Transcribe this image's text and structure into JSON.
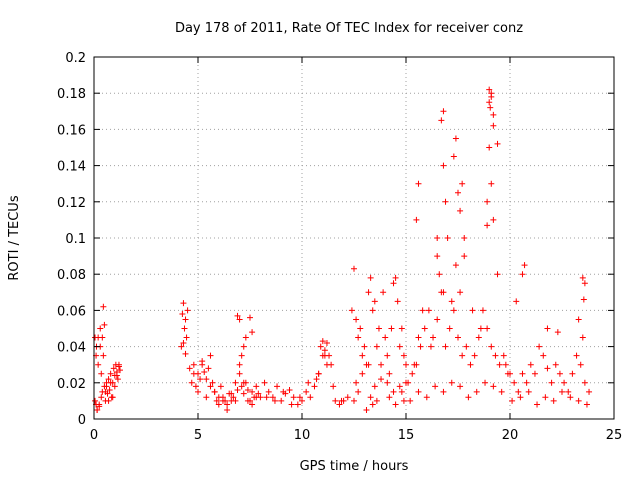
{
  "chart_data": {
    "type": "scatter",
    "title": "Day 178 of 2011, Rate Of TEC Index for receiver conz",
    "xlabel": "GPS time / hours",
    "ylabel": "ROTI / TECUs",
    "xlim": [
      0,
      25
    ],
    "ylim": [
      0,
      0.2
    ],
    "xticks": [
      0,
      5,
      10,
      15,
      20,
      25
    ],
    "yticks": [
      0,
      0.02,
      0.04,
      0.06,
      0.08,
      0.1,
      0.12,
      0.14,
      0.16,
      0.18,
      0.2
    ],
    "xtick_labels": [
      "0",
      "5",
      "10",
      "15",
      "20",
      "25"
    ],
    "ytick_labels": [
      "0",
      "0.02",
      "0.04",
      "0.06",
      "0.08",
      "0.1",
      "0.12",
      "0.14",
      "0.16",
      "0.18",
      "0.2"
    ],
    "grid": true,
    "marker": "plus",
    "color": "#ff0000",
    "series": [
      {
        "x": [
          0.05,
          0.1,
          0.12,
          0.15,
          0.2,
          0.25,
          0.3,
          0.35,
          0.4,
          0.45,
          0.5,
          0.55,
          0.6,
          0.65,
          0.7,
          0.75,
          0.8,
          0.85,
          0.9,
          0.95,
          1.0,
          1.05,
          1.1,
          1.15,
          1.2,
          1.25,
          0.1,
          0.2,
          0.3,
          0.4,
          0.5,
          0.55,
          0.6,
          0.7,
          0.8,
          0.9,
          1.0,
          1.1,
          1.2,
          0.15,
          0.35,
          0.45,
          0.05,
          0.25,
          4.2,
          4.25,
          4.3,
          4.35,
          4.4,
          4.45,
          4.5,
          4.3,
          4.4,
          4.6,
          4.7,
          4.8,
          4.9,
          5.0,
          5.1,
          5.2,
          5.3,
          5.4,
          5.5,
          5.6,
          5.7,
          5.8,
          5.9,
          6.0,
          6.1,
          6.2,
          6.3,
          6.4,
          6.5,
          6.6,
          6.7,
          6.8,
          6.9,
          7.0,
          7.1,
          7.2,
          7.3,
          7.4,
          7.5,
          7.6,
          7.7,
          7.8,
          7.9,
          8.0,
          4.8,
          5.0,
          5.2,
          5.4,
          5.6,
          5.8,
          6.0,
          6.2,
          6.4,
          6.6,
          6.8,
          7.0,
          7.2,
          7.4,
          7.6,
          7.8,
          6.9,
          7.0,
          7.2,
          7.5,
          7.3,
          7.6,
          7.1,
          8.2,
          8.4,
          8.6,
          8.8,
          9.0,
          9.2,
          9.4,
          9.6,
          9.8,
          10.0,
          10.2,
          10.4,
          10.6,
          10.8,
          11.0,
          11.2,
          11.4,
          11.6,
          11.8,
          12.0,
          12.2,
          8.3,
          8.7,
          9.1,
          9.5,
          9.9,
          10.3,
          10.7,
          11.1,
          11.5,
          11.9,
          10.9,
          11.0,
          11.1,
          11.2,
          10.8,
          11.3,
          12.4,
          12.5,
          12.6,
          12.7,
          12.8,
          12.9,
          13.0,
          13.1,
          13.2,
          13.3,
          13.4,
          13.5,
          13.6,
          13.7,
          13.8,
          13.9,
          14.0,
          14.1,
          14.2,
          14.3,
          14.4,
          14.5,
          14.6,
          14.7,
          14.8,
          14.9,
          15.0,
          12.6,
          12.9,
          13.2,
          13.5,
          13.8,
          14.1,
          14.4,
          14.7,
          15.0,
          12.5,
          12.7,
          13.3,
          13.4,
          13.6,
          14.2,
          14.8,
          14.9,
          14.5,
          13.1,
          15.1,
          15.3,
          15.5,
          15.7,
          15.9,
          16.1,
          16.3,
          16.5,
          16.7,
          16.9,
          17.1,
          17.3,
          17.5,
          17.7,
          17.9,
          18.1,
          18.3,
          18.5,
          18.7,
          18.9,
          19.1,
          19.3,
          19.5,
          19.7,
          19.9,
          15.2,
          15.6,
          16.0,
          16.4,
          16.8,
          17.2,
          17.6,
          18.0,
          18.4,
          18.8,
          19.2,
          19.6,
          15.4,
          15.6,
          15.8,
          16.2,
          16.6,
          16.8,
          17.0,
          17.2,
          17.4,
          17.6,
          17.8,
          18.2,
          18.6,
          15.5,
          15.6,
          16.5,
          16.8,
          16.9,
          17.4,
          17.5,
          17.7,
          17.8,
          18.9,
          19.0,
          19.1,
          19.2,
          19.4,
          16.5,
          16.7,
          16.8,
          17.3,
          17.6,
          19.0,
          19.1,
          19.4,
          19.2,
          18.9,
          19.0,
          19.1,
          19.05,
          19.2,
          19.8,
          20.0,
          20.2,
          20.4,
          20.6,
          20.8,
          21.0,
          21.2,
          21.4,
          21.6,
          21.8,
          22.0,
          22.2,
          22.4,
          22.6,
          22.8,
          23.0,
          23.2,
          23.4,
          23.6,
          23.8,
          20.1,
          20.5,
          20.9,
          21.3,
          21.7,
          22.1,
          22.5,
          22.9,
          23.3,
          23.7,
          20.3,
          20.6,
          20.7,
          21.8,
          22.3,
          23.3,
          23.5,
          23.5,
          23.6,
          23.55
        ],
        "y": [
          0.01,
          0.035,
          0.04,
          0.005,
          0.045,
          0.008,
          0.05,
          0.012,
          0.015,
          0.062,
          0.018,
          0.01,
          0.02,
          0.014,
          0.022,
          0.016,
          0.025,
          0.012,
          0.02,
          0.028,
          0.024,
          0.03,
          0.026,
          0.022,
          0.029,
          0.027,
          0.008,
          0.03,
          0.04,
          0.045,
          0.052,
          0.015,
          0.018,
          0.01,
          0.02,
          0.012,
          0.018,
          0.024,
          0.03,
          0.005,
          0.025,
          0.035,
          0.045,
          0.007,
          0.04,
          0.058,
          0.064,
          0.05,
          0.055,
          0.045,
          0.06,
          0.042,
          0.036,
          0.028,
          0.02,
          0.025,
          0.018,
          0.015,
          0.022,
          0.03,
          0.026,
          0.012,
          0.028,
          0.035,
          0.02,
          0.015,
          0.01,
          0.008,
          0.018,
          0.012,
          0.01,
          0.005,
          0.014,
          0.01,
          0.012,
          0.02,
          0.016,
          0.025,
          0.018,
          0.014,
          0.02,
          0.016,
          0.01,
          0.008,
          0.012,
          0.018,
          0.014,
          0.012,
          0.03,
          0.025,
          0.032,
          0.022,
          0.018,
          0.015,
          0.012,
          0.01,
          0.008,
          0.014,
          0.01,
          0.03,
          0.02,
          0.01,
          0.015,
          0.012,
          0.057,
          0.055,
          0.04,
          0.056,
          0.045,
          0.048,
          0.035,
          0.02,
          0.015,
          0.012,
          0.018,
          0.01,
          0.014,
          0.016,
          0.012,
          0.008,
          0.01,
          0.015,
          0.012,
          0.018,
          0.025,
          0.035,
          0.042,
          0.03,
          0.01,
          0.008,
          0.01,
          0.012,
          0.012,
          0.01,
          0.015,
          0.008,
          0.012,
          0.02,
          0.022,
          0.035,
          0.018,
          0.01,
          0.04,
          0.043,
          0.038,
          0.03,
          0.025,
          0.035,
          0.06,
          0.083,
          0.055,
          0.045,
          0.05,
          0.035,
          0.04,
          0.03,
          0.07,
          0.078,
          0.06,
          0.065,
          0.04,
          0.05,
          0.03,
          0.07,
          0.045,
          0.035,
          0.025,
          0.05,
          0.075,
          0.078,
          0.065,
          0.04,
          0.05,
          0.035,
          0.03,
          0.02,
          0.025,
          0.03,
          0.018,
          0.022,
          0.02,
          0.015,
          0.018,
          0.02,
          0.01,
          0.015,
          0.012,
          0.008,
          0.01,
          0.012,
          0.015,
          0.01,
          0.008,
          0.005,
          0.02,
          0.025,
          0.03,
          0.04,
          0.05,
          0.06,
          0.045,
          0.055,
          0.07,
          0.04,
          0.05,
          0.06,
          0.045,
          0.035,
          0.04,
          0.03,
          0.035,
          0.045,
          0.06,
          0.05,
          0.04,
          0.035,
          0.03,
          0.035,
          0.025,
          0.01,
          0.015,
          0.012,
          0.018,
          0.015,
          0.02,
          0.018,
          0.012,
          0.015,
          0.02,
          0.018,
          0.015,
          0.03,
          0.045,
          0.06,
          0.04,
          0.08,
          0.07,
          0.1,
          0.065,
          0.085,
          0.07,
          0.09,
          0.06,
          0.05,
          0.11,
          0.13,
          0.09,
          0.14,
          0.12,
          0.155,
          0.125,
          0.13,
          0.1,
          0.12,
          0.15,
          0.13,
          0.11,
          0.08,
          0.1,
          0.165,
          0.17,
          0.145,
          0.115,
          0.175,
          0.18,
          0.152,
          0.162,
          0.107,
          0.182,
          0.178,
          0.172,
          0.168,
          0.03,
          0.025,
          0.02,
          0.015,
          0.025,
          0.02,
          0.03,
          0.025,
          0.04,
          0.035,
          0.028,
          0.02,
          0.03,
          0.025,
          0.02,
          0.015,
          0.025,
          0.035,
          0.03,
          0.02,
          0.015,
          0.01,
          0.012,
          0.015,
          0.008,
          0.012,
          0.01,
          0.015,
          0.012,
          0.01,
          0.008,
          0.065,
          0.08,
          0.085,
          0.05,
          0.048,
          0.055,
          0.045,
          0.078,
          0.075,
          0.066
        ]
      }
    ]
  }
}
